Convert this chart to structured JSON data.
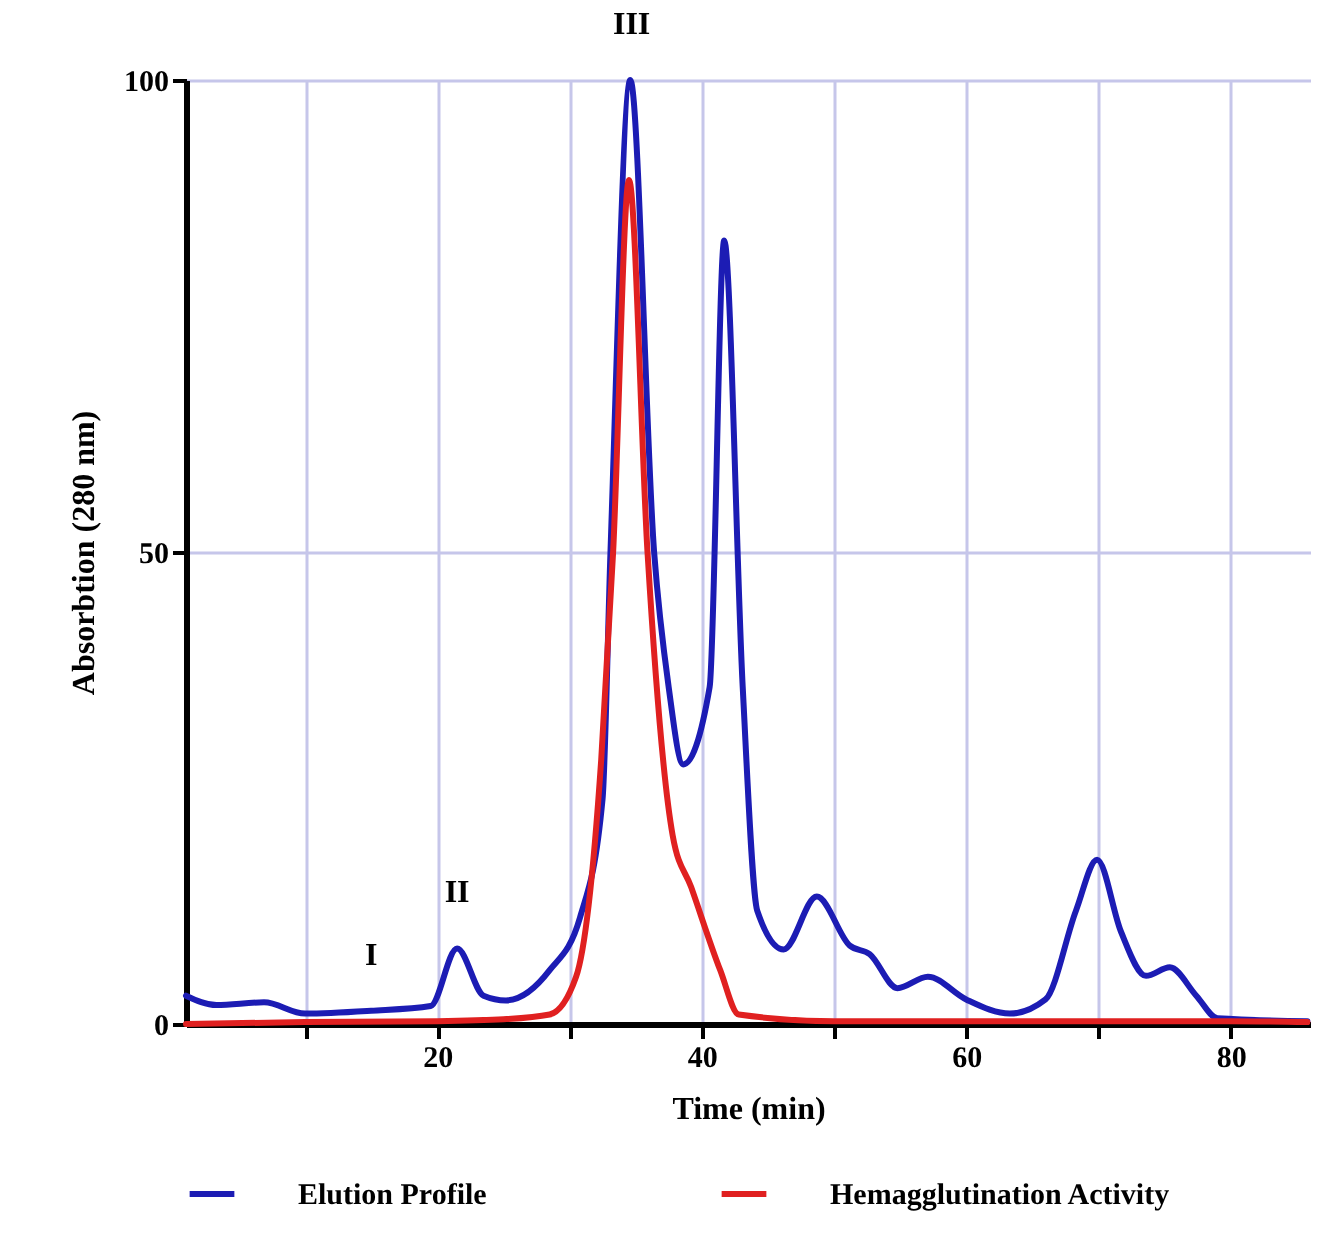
{
  "chart_data": {
    "type": "line",
    "xlabel": "Time (min)",
    "ylabel": "Absorbtion (280 nm)",
    "xlim": [
      1,
      86
    ],
    "ylim": [
      0,
      100
    ],
    "xticks": [
      {
        "value": 10,
        "label": null
      },
      20,
      {
        "value": 30,
        "label": null
      },
      40,
      {
        "value": 50,
        "label": null
      },
      60,
      {
        "value": 70,
        "label": null
      },
      80
    ],
    "yticks": [
      0,
      50,
      100
    ],
    "grid": true,
    "legend": "bottom",
    "marker": "none",
    "line_style": "solid",
    "series": [
      {
        "name": "Elution Profile",
        "color": "#1c1cb4",
        "x": [
          1,
          3.3,
          6.9,
          10,
          15,
          19.5,
          21.5,
          23.5,
          25.2,
          28.5,
          30.8,
          32.5,
          33.1,
          34.6,
          36.4,
          37.5,
          38.6,
          40.6,
          41.7,
          43.1,
          44.2,
          46.2,
          48.7,
          51.2,
          52.7,
          54.8,
          57.1,
          60,
          63.3,
          66,
          68.3,
          69.9,
          71.7,
          73.6,
          75.4,
          77.4,
          79,
          85.8
        ],
        "values": [
          3,
          2,
          2.3,
          1.1,
          1.4,
          1.9,
          8,
          3,
          2.5,
          5.7,
          11.3,
          23.8,
          50,
          100,
          50,
          35.7,
          27.5,
          35.7,
          83,
          35.7,
          12,
          7.9,
          13.5,
          8.3,
          7.4,
          3.8,
          5,
          2.6,
          1.1,
          2.6,
          12,
          17.4,
          9.8,
          5.1,
          6,
          3,
          0.6,
          0.3
        ]
      },
      {
        "name": "Hemagglutination Activity",
        "color": "#e02020",
        "x": [
          1,
          10,
          20,
          25,
          28.5,
          30.5,
          32.4,
          33.3,
          34.5,
          35.9,
          37.8,
          39.2,
          41.4,
          42.8,
          50,
          60,
          70,
          80,
          85.8
        ],
        "values": [
          0,
          0.2,
          0.3,
          0.5,
          1,
          5,
          28,
          50,
          89.4,
          50,
          20,
          14.5,
          5.7,
          1,
          0.3,
          0.3,
          0.3,
          0.3,
          0.2
        ]
      }
    ],
    "annotations": [
      {
        "text": "I",
        "x": 15,
        "y": 1.4
      },
      {
        "text": "II",
        "x": 21.5,
        "y": 8
      },
      {
        "text": "III",
        "x": 34.7,
        "y": 100
      }
    ]
  }
}
